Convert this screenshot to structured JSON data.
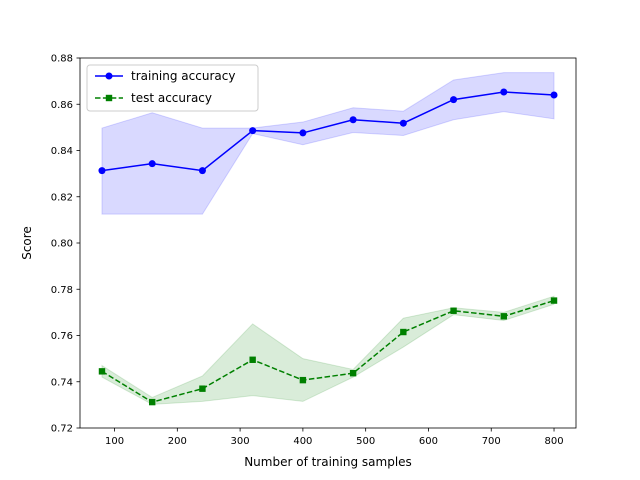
{
  "chart_data": {
    "type": "line",
    "title": "",
    "xlabel": "Number of training samples",
    "ylabel": "Score",
    "xlim": [
      45,
      835
    ],
    "ylim": [
      0.72,
      0.88
    ],
    "xticks": [
      100,
      200,
      300,
      400,
      500,
      600,
      700,
      800
    ],
    "yticks": [
      0.72,
      0.74,
      0.76,
      0.78,
      0.8,
      0.82,
      0.84,
      0.86,
      0.88
    ],
    "xtick_labels": [
      "100",
      "200",
      "300",
      "400",
      "500",
      "600",
      "700",
      "800"
    ],
    "ytick_labels": [
      "0.72",
      "0.74",
      "0.76",
      "0.78",
      "0.80",
      "0.82",
      "0.84",
      "0.86",
      "0.88"
    ],
    "grid": false,
    "legend_position": "top-left",
    "x": [
      80,
      160,
      240,
      320,
      400,
      480,
      560,
      640,
      720,
      800
    ],
    "series": [
      {
        "name": "training accuracy",
        "color": "#0000ff",
        "marker": "circle",
        "linestyle": "solid",
        "values": [
          0.8313,
          0.8343,
          0.8313,
          0.8486,
          0.8476,
          0.8533,
          0.8518,
          0.862,
          0.8653,
          0.864
        ],
        "band_upper": [
          0.8497,
          0.8563,
          0.8497,
          0.8497,
          0.8523,
          0.8585,
          0.857,
          0.8705,
          0.8737,
          0.8737
        ],
        "band_lower": [
          0.8125,
          0.8125,
          0.8125,
          0.8473,
          0.8425,
          0.8478,
          0.8465,
          0.8533,
          0.8568,
          0.8537
        ],
        "band_color": "#0000ff"
      },
      {
        "name": "test accuracy",
        "color": "#008000",
        "marker": "square",
        "linestyle": "dashed",
        "values": [
          0.7445,
          0.7312,
          0.737,
          0.7495,
          0.7407,
          0.7437,
          0.7615,
          0.7707,
          0.7683,
          0.7751
        ],
        "band_upper": [
          0.747,
          0.7332,
          0.7425,
          0.765,
          0.75,
          0.7453,
          0.7675,
          0.772,
          0.77,
          0.777
        ],
        "band_lower": [
          0.742,
          0.7302,
          0.7315,
          0.734,
          0.7315,
          0.742,
          0.755,
          0.769,
          0.7665,
          0.7735
        ],
        "band_color": "#008000"
      }
    ]
  }
}
